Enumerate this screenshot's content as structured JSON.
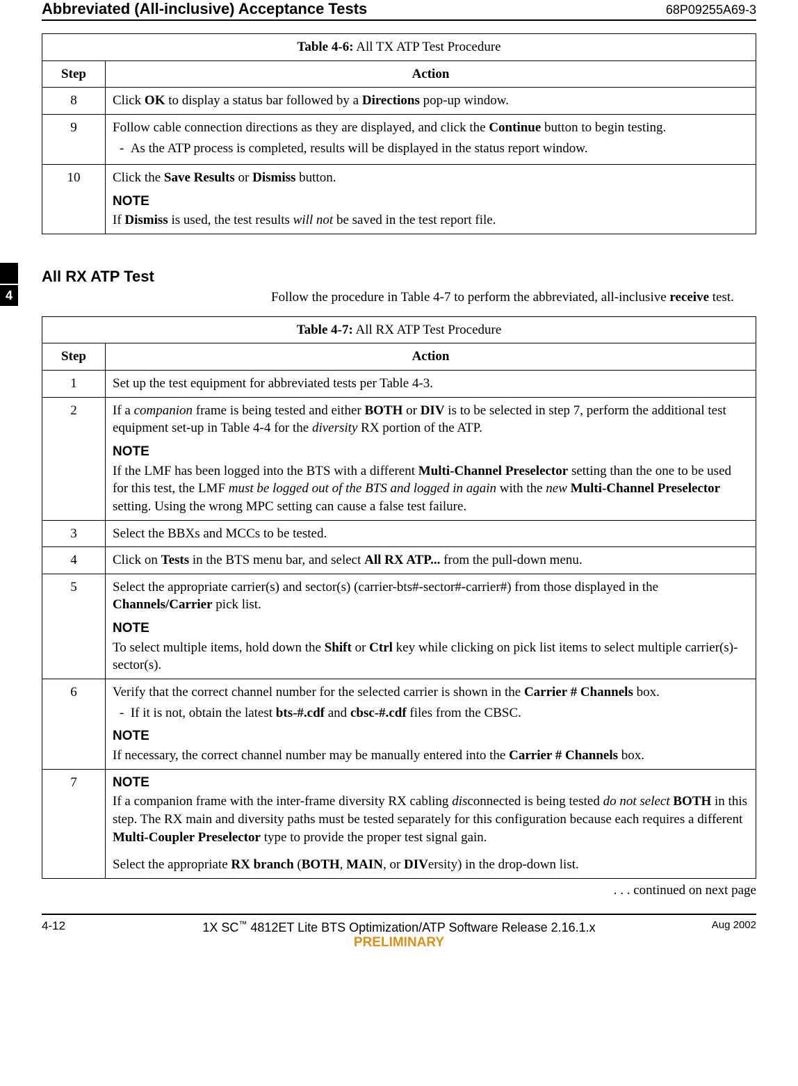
{
  "header": {
    "title": "Abbreviated (All-inclusive) Acceptance Tests",
    "doc_number": "68P09255A69-3"
  },
  "tab": "4",
  "table46": {
    "caption_label": "Table 4-6:",
    "caption_text": " All TX ATP Test Procedure",
    "col_step": "Step",
    "col_action": "Action",
    "rows": [
      {
        "step": "8",
        "html": "Click <b>OK</b> to display a status bar followed by a <b>Directions</b> pop-up window."
      },
      {
        "step": "9",
        "html": "Follow cable connection directions as they are displayed, and click the <b>Continue</b> button to begin testing.<div class=\"dash-item\">-&nbsp;&nbsp;As the ATP process is completed, results will be displayed in the status report window.</div>"
      },
      {
        "step": "10",
        "html": "Click the <b>Save Results</b> or <b>Dismiss</b> button.<span class=\"note-label\">NOTE</span>If <b>Dismiss</b> is used, the test results <i>will not</i> be saved in the test report file."
      }
    ]
  },
  "section": {
    "heading": "All RX ATP Test",
    "intro_html": "Follow the procedure in Table 4-7 to perform the abbreviated, all-inclusive <b>receive</b> test."
  },
  "table47": {
    "caption_label": "Table 4-7:",
    "caption_text": " All RX ATP Test Procedure",
    "col_step": "Step",
    "col_action": "Action",
    "rows": [
      {
        "step": "1",
        "html": "Set up the test equipment for abbreviated tests per Table 4-3."
      },
      {
        "step": "2",
        "html": "If a <i>companion</i> frame is being tested and either <b>BOTH</b> or <b>DIV</b> is to be selected in step 7, perform the additional test equipment set-up in Table 4-4 for the <i>diversity</i> RX portion of the ATP.<span class=\"note-label\">NOTE</span>If the LMF has been logged into the BTS with a different <b>Multi-Channel Preselector</b> setting than the one to be used for this test, the LMF <i>must be logged out of the BTS and logged in again</i> with the <i>new</i> <b>Multi-Channel Preselector</b> setting. Using the wrong MPC setting can cause a false test failure."
      },
      {
        "step": "3",
        "html": "Select the BBXs and MCCs to be tested."
      },
      {
        "step": "4",
        "html": "Click on <b>Tests</b> in the BTS menu bar, and select <b>All RX ATP...</b> from the pull-down menu."
      },
      {
        "step": "5",
        "html": "Select the appropriate carrier(s) and sector(s) (carrier-bts#-sector#-carrier#) from those displayed in the <b>Channels/Carrier</b> pick list.<span class=\"note-label\">NOTE</span>To select multiple items, hold down the <b>Shift</b> or <b>Ctrl</b> key while clicking on pick list items to select multiple carrier(s)-sector(s)."
      },
      {
        "step": "6",
        "html": "Verify that the correct channel number for the selected carrier is shown in the <b>Carrier # Channels</b> box.<div class=\"dash-item\">-&nbsp;&nbsp;If it is not, obtain the latest <b>bts-#.cdf</b> and <b>cbsc-#.cdf</b> files from the CBSC.</div><span class=\"note-label\">NOTE</span>If necessary, the correct channel number may be manually entered into the <b>Carrier # Channels</b> box."
      },
      {
        "step": "7",
        "html": "<span class=\"note-label\" style=\"margin-top:0\">NOTE</span>If a companion frame with the inter-frame diversity RX cabling <i>dis</i>connected is being tested <i>do not select</i> <b>BOTH</b> in this step. The RX main and diversity paths must be tested separately for this configuration because each requires a different <b>Multi-Coupler Preselector</b> type to provide the proper test signal gain.<div style=\"height:14px\"></div>Select the appropriate <b>RX branch</b> (<b>BOTH</b>, <b>MAIN</b>, or <b>DIV</b>ersity) in the drop-down list."
      }
    ]
  },
  "continued": ". . . continued on next page",
  "footer": {
    "page": "4-12",
    "center_line": "1X SC™ 4812ET Lite BTS Optimization/ATP Software Release 2.16.1.x",
    "preliminary": "PRELIMINARY",
    "date": "Aug 2002"
  }
}
